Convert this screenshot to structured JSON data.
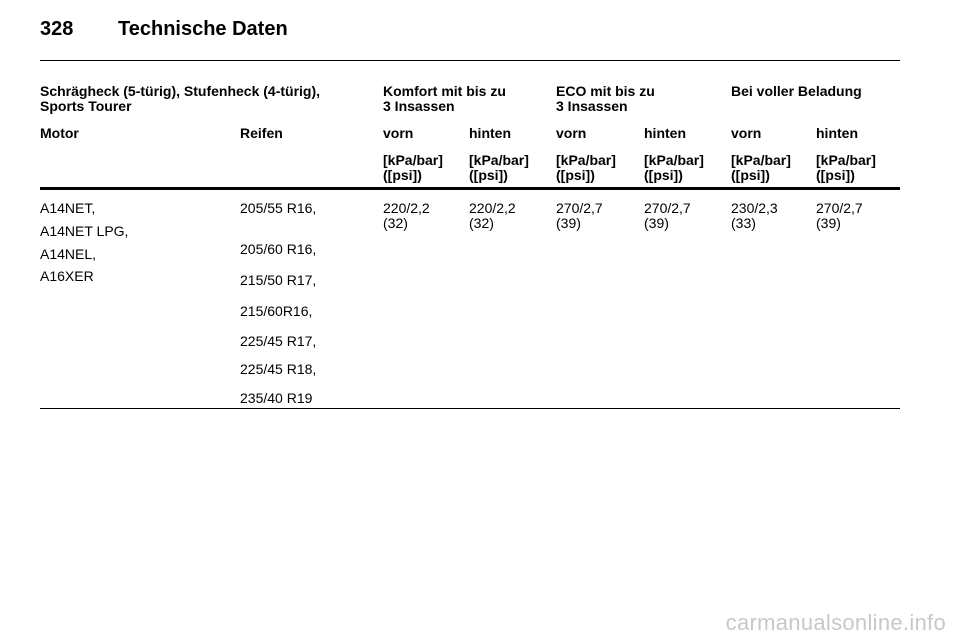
{
  "header": {
    "page_number": "328",
    "title": "Technische Daten"
  },
  "table": {
    "group_header": {
      "vehicle": "Schrägheck (5-türig), Stufenheck (4-türig),\nSports Tourer",
      "comfort": "Komfort mit bis zu\n3 Insassen",
      "eco": "ECO mit bis zu\n3 Insassen",
      "full": "Bei voller Beladung"
    },
    "column_header": {
      "motor": "Motor",
      "tyres": "Reifen",
      "front": "vorn",
      "rear": "hinten"
    },
    "unit": "[kPa/bar]\n([psi])",
    "row": {
      "engines": [
        "A14NET,",
        "A14NET LPG,",
        "A14NEL,",
        "A16XER"
      ],
      "tyres": [
        "205/55 R16,",
        "205/60 R16,",
        "215/50 R17,",
        "215/60R16,",
        "225/45 R17,",
        "225/45 R18,",
        "235/40 R19"
      ],
      "values": [
        "220/2,2\n(32)",
        "220/2,2\n(32)",
        "270/2,7\n(39)",
        "270/2,7\n(39)",
        "230/2,3\n(33)",
        "270/2,7\n(39)"
      ]
    }
  },
  "watermark": "carmanualsonline.info"
}
